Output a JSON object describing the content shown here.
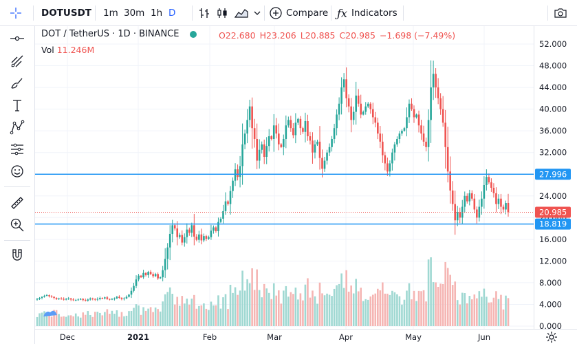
{
  "toolbar": {
    "symbol": "DOTUSDT",
    "intervals": [
      "1m",
      "30m",
      "1h",
      "D"
    ],
    "active_interval": "D",
    "compare_label": "Compare",
    "indicators_label": "Indicators"
  },
  "legend": {
    "pair": "DOT / TetherUS · 1D · BINANCE",
    "open_label": "O",
    "open": "22.680",
    "high_label": "H",
    "high": "23.206",
    "low_label": "L",
    "low": "20.885",
    "close_label": "C",
    "close": "20.985",
    "change": "−1.698 (−7.49%)",
    "vol_label": "Vol",
    "vol_value": "11.246M"
  },
  "price_axis": {
    "ticks": [
      "52.000",
      "48.000",
      "44.000",
      "40.000",
      "36.000",
      "32.000",
      "28.000",
      "24.000",
      "20.000",
      "16.000",
      "12.000",
      "8.000",
      "4.000",
      "0.000"
    ],
    "tags": [
      {
        "label": "27.996",
        "value": 27.996,
        "color": "#2196f3"
      },
      {
        "label": "20.985",
        "value": 20.985,
        "color": "#ef5350"
      },
      {
        "label": "18.819",
        "value": 18.819,
        "color": "#2196f3"
      }
    ]
  },
  "time_axis": {
    "labels": [
      "Dec",
      "2021",
      "Feb",
      "Mar",
      "Apr",
      "May",
      "Jun"
    ]
  },
  "chart_data": {
    "type": "candlestick",
    "ylim": [
      0,
      54
    ],
    "horizontal_lines": [
      27.996,
      18.819
    ],
    "last_price": 20.985,
    "colors": {
      "up": "#26a69a",
      "down": "#ef5350",
      "line": "#2196f3"
    },
    "close": [
      5.0,
      5.2,
      5.4,
      5.6,
      5.7,
      5.5,
      5.4,
      5.2,
      5.0,
      5.1,
      5.0,
      4.9,
      5.0,
      5.1,
      4.9,
      4.8,
      4.8,
      4.9,
      5.0,
      4.8,
      4.7,
      4.9,
      5.1,
      5.0,
      4.9,
      5.0,
      5.2,
      5.1,
      5.3,
      5.0,
      4.9,
      5.0,
      5.1,
      5.4,
      5.2,
      5.0,
      5.1,
      5.4,
      5.8,
      6.5,
      7.4,
      8.6,
      9.3,
      9.0,
      9.8,
      9.4,
      10.0,
      9.6,
      9.2,
      9.6,
      8.8,
      9.0,
      10.3,
      12.4,
      14.5,
      17.0,
      18.6,
      18.0,
      16.4,
      16.8,
      15.4,
      16.4,
      17.8,
      17.2,
      18.6,
      16.5,
      15.9,
      16.9,
      15.8,
      16.6,
      16.1,
      16.4,
      17.6,
      18.2,
      17.5,
      19.2,
      19.8,
      21.2,
      23.0,
      22.5,
      24.9,
      26.8,
      28.9,
      27.5,
      29.5,
      33.5,
      35.5,
      38.0,
      40.5,
      36.5,
      34.5,
      30.5,
      32.5,
      33.5,
      31.2,
      33.2,
      35.0,
      34.5,
      37.0,
      35.5,
      33.5,
      33.0,
      34.5,
      37.0,
      38.0,
      36.5,
      35.2,
      37.5,
      38.2,
      36.5,
      35.8,
      37.8,
      35.0,
      34.2,
      32.0,
      33.5,
      34.0,
      31.0,
      29.0,
      30.5,
      32.0,
      33.0,
      34.5,
      36.5,
      39.0,
      41.0,
      44.0,
      45.5,
      42.0,
      40.5,
      38.0,
      39.5,
      42.5,
      41.0,
      39.0,
      39.5,
      40.5,
      41.0,
      40.0,
      38.5,
      37.5,
      35.5,
      34.0,
      31.5,
      30.0,
      28.5,
      30.0,
      32.0,
      33.5,
      34.5,
      35.5,
      36.0,
      36.5,
      38.5,
      41.0,
      40.0,
      38.5,
      39.0,
      37.0,
      35.5,
      34.0,
      33.0,
      38.0,
      44.0,
      46.5,
      44.0,
      42.0,
      40.0,
      37.5,
      33.0,
      28.5,
      25.0,
      22.5,
      19.5,
      21.0,
      20.0,
      22.0,
      24.0,
      23.0,
      24.5,
      23.5,
      21.5,
      20.0,
      22.0,
      23.5,
      26.0,
      27.5,
      26.5,
      25.5,
      24.5,
      22.5,
      23.5,
      22.0,
      21.5,
      22.7,
      21.0
    ]
  }
}
